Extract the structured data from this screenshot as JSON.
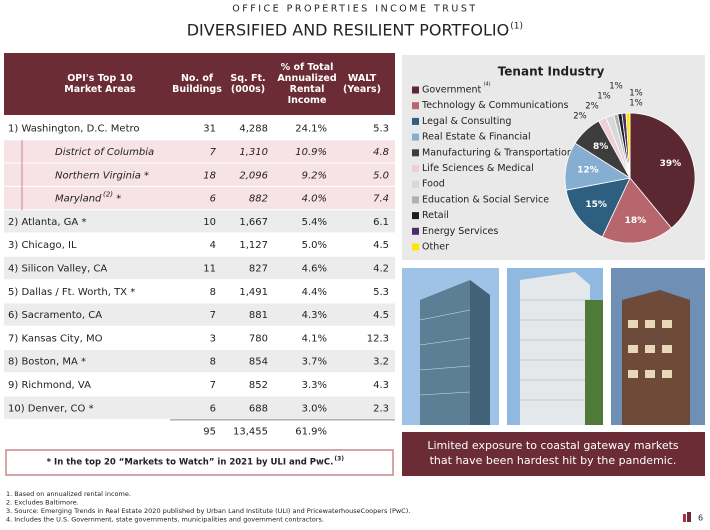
{
  "header": {
    "company": "OFFICE PROPERTIES INCOME TRUST",
    "title": "DIVERSIFIED AND RESILIENT PORTFOLIO",
    "title_note": "(1)"
  },
  "table": {
    "columns": [
      [
        "OPI's Top 10",
        "Market Areas"
      ],
      [
        "No. of",
        "Buildings"
      ],
      [
        "Sq. Ft.",
        "(000s)"
      ],
      [
        "% of Total",
        "Annualized",
        "Rental",
        "Income"
      ],
      [
        "WALT",
        "(Years)"
      ]
    ],
    "rows": [
      {
        "market": "1) Washington, D.C. Metro",
        "buildings": "31",
        "sqft": "4,288",
        "pct": "24.1%",
        "walt": "5.3",
        "submarkets": [
          {
            "market": "District of Columbia",
            "buildings": "7",
            "sqft": "1,310",
            "pct": "10.9%",
            "walt": "4.8"
          },
          {
            "market": "Northern Virginia *",
            "buildings": "18",
            "sqft": "2,096",
            "pct": "9.2%",
            "walt": "5.0"
          },
          {
            "market": "Maryland",
            "note": "(2)",
            "star": "*",
            "buildings": "6",
            "sqft": "882",
            "pct": "4.0%",
            "walt": "7.4"
          }
        ]
      },
      {
        "market": "2) Atlanta, GA *",
        "buildings": "10",
        "sqft": "1,667",
        "pct": "5.4%",
        "walt": "6.1"
      },
      {
        "market": "3) Chicago, IL",
        "buildings": "4",
        "sqft": "1,127",
        "pct": "5.0%",
        "walt": "4.5"
      },
      {
        "market": "4) Silicon Valley, CA",
        "buildings": "11",
        "sqft": "827",
        "pct": "4.6%",
        "walt": "4.2"
      },
      {
        "market": "5) Dallas / Ft. Worth, TX *",
        "buildings": "8",
        "sqft": "1,491",
        "pct": "4.4%",
        "walt": "5.3"
      },
      {
        "market": "6) Sacramento, CA",
        "buildings": "7",
        "sqft": "881",
        "pct": "4.3%",
        "walt": "4.5"
      },
      {
        "market": "7) Kansas City, MO",
        "buildings": "3",
        "sqft": "780",
        "pct": "4.1%",
        "walt": "12.3"
      },
      {
        "market": "8) Boston, MA *",
        "buildings": "8",
        "sqft": "854",
        "pct": "3.7%",
        "walt": "3.2"
      },
      {
        "market": "9) Richmond, VA",
        "buildings": "7",
        "sqft": "852",
        "pct": "3.3%",
        "walt": "4.3"
      },
      {
        "market": "10) Denver, CO *",
        "buildings": "6",
        "sqft": "688",
        "pct": "3.0%",
        "walt": "2.3"
      }
    ],
    "total": {
      "buildings": "95",
      "sqft": "13,455",
      "pct": "61.9%"
    },
    "note": "* In the top 20 “Markets to Watch” in 2021 by ULI and PwC.",
    "note_ref": "(3)"
  },
  "chart_data": {
    "type": "pie",
    "title": "Tenant Industry",
    "legend_note": "(4)",
    "categories": [
      "Government",
      "Technology & Communications",
      "Legal & Consulting",
      "Real Estate & Financial",
      "Manufacturing & Transportation",
      "Life Sciences & Medical",
      "Food",
      "Education & Social Service",
      "Retail",
      "Energy Services",
      "Other"
    ],
    "values": [
      39,
      18,
      15,
      12,
      8,
      2,
      2,
      1,
      1,
      1,
      1
    ],
    "value_labels": [
      "39%",
      "18%",
      "15%",
      "12%",
      "8%",
      "2%",
      "2%",
      "1%",
      "1%",
      "1%",
      "1%"
    ],
    "colors": [
      "#5b2730",
      "#b8666e",
      "#2f5f80",
      "#86aed0",
      "#3d3d3d",
      "#efcfd3",
      "#d8d8d8",
      "#b0b0b0",
      "#1e1e1e",
      "#4a2c6e",
      "#ffe600"
    ]
  },
  "callout": "Limited exposure to coastal gateway markets that have been hardest hit by the pandemic.",
  "footnotes": [
    "1.   Based on annualized rental income.",
    "2.   Excludes Baltimore.",
    "3.   Source: Emerging Trends in Real Estate 2020 published by Urban Land Institute (ULI) and PricewaterhouseCoopers (PwC).",
    "4.   Includes the U.S. Government, state governments, municipalities and government contractors."
  ],
  "page_number": "6"
}
